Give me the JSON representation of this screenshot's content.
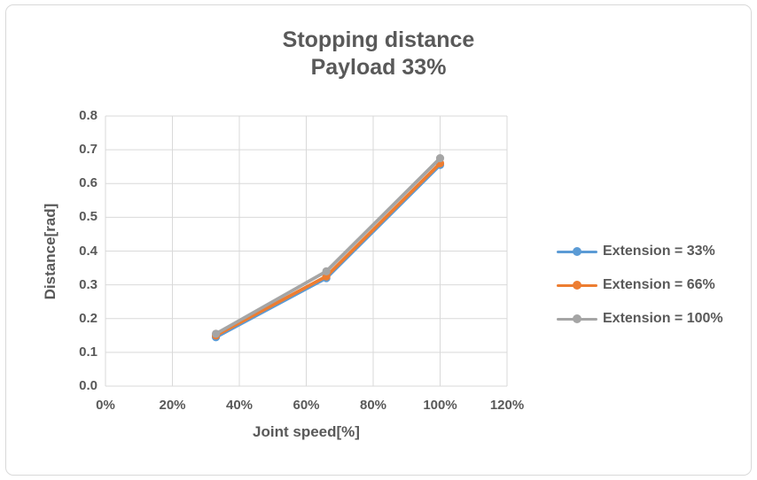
{
  "title_lines": [
    "Stopping distance",
    "Payload 33%"
  ],
  "colors": {
    "text": "#595959",
    "grid": "#D9D9D9",
    "frame_border": "#D9D9D9",
    "background": "#FFFFFF",
    "series_blue": "#5B9BD5",
    "series_orange": "#ED7D31",
    "series_gray": "#A5A5A5"
  },
  "chart_data": {
    "type": "line",
    "title": "Stopping distance Payload 33%",
    "xlabel": "Joint speed[%]",
    "ylabel": "Distance[rad]",
    "xlim": [
      0,
      120
    ],
    "ylim": [
      0,
      0.8
    ],
    "grid": true,
    "legend_position": "right",
    "x_ticks": {
      "values": [
        0,
        20,
        40,
        60,
        80,
        100,
        120
      ],
      "labels": [
        "0%",
        "20%",
        "40%",
        "60%",
        "80%",
        "100%",
        "120%"
      ]
    },
    "y_ticks": {
      "values": [
        0,
        0.1,
        0.2,
        0.3,
        0.4,
        0.5,
        0.6,
        0.7,
        0.8
      ],
      "labels": [
        "0.0",
        "0.1",
        "0.2",
        "0.3",
        "0.4",
        "0.5",
        "0.6",
        "0.7",
        "0.8"
      ]
    },
    "x": [
      33,
      66,
      100
    ],
    "series": [
      {
        "name": "Extension = 33%",
        "color": "#5B9BD5",
        "values": [
          0.145,
          0.32,
          0.655
        ]
      },
      {
        "name": "Extension = 66%",
        "color": "#ED7D31",
        "values": [
          0.15,
          0.325,
          0.66
        ]
      },
      {
        "name": "Extension = 100%",
        "color": "#A5A5A5",
        "values": [
          0.155,
          0.34,
          0.675
        ]
      }
    ],
    "marker": "circle"
  }
}
